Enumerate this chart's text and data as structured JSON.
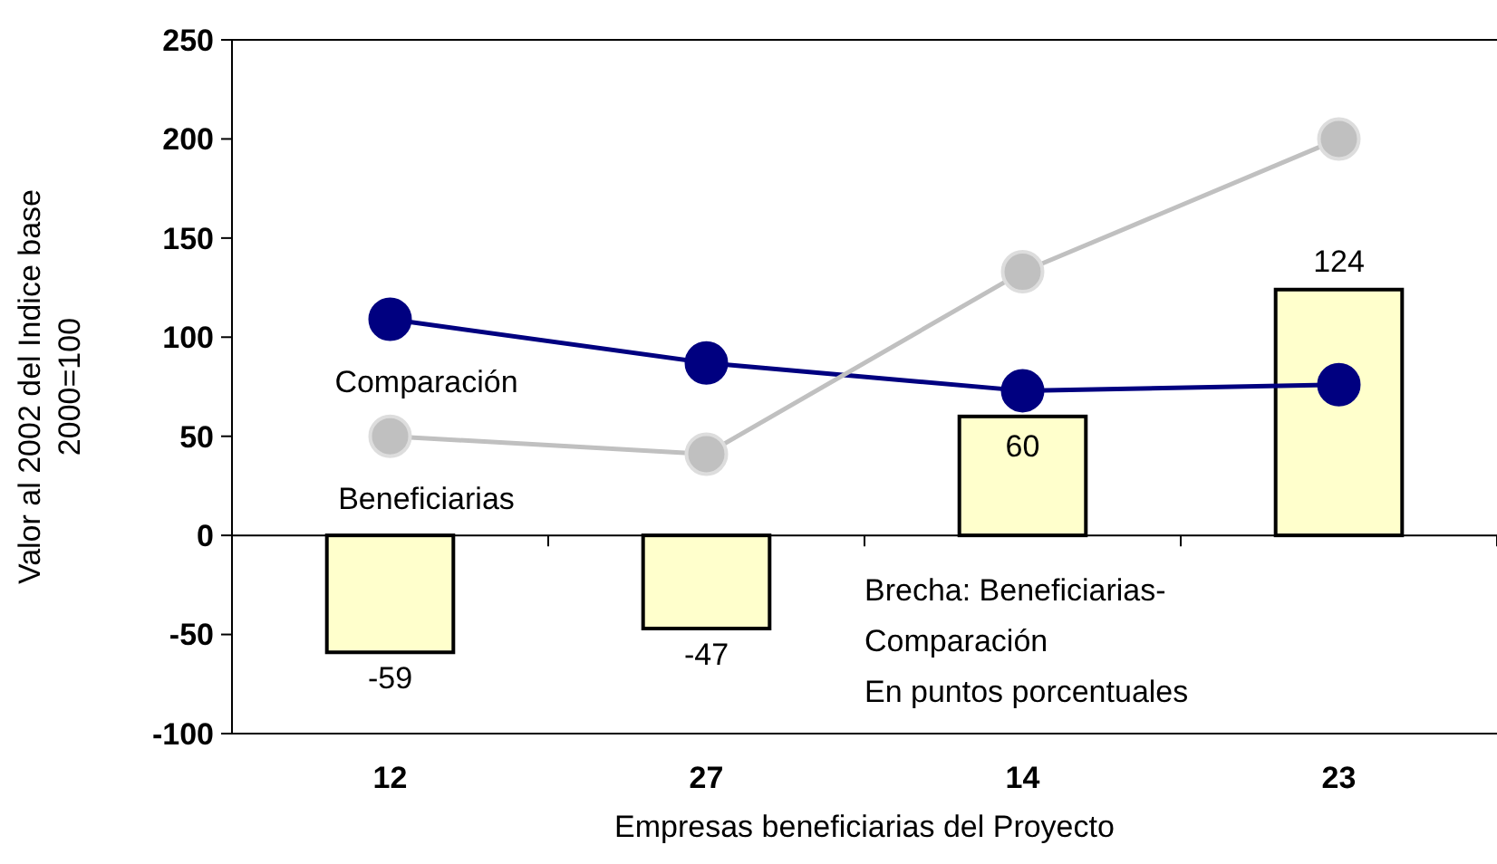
{
  "chart_data": {
    "type": "bar",
    "xlabel": "Empresas beneficiarias del Proyecto",
    "ylabel": "Valor al 2002 del Indice base 2000=100",
    "categories": [
      "12",
      "27",
      "14",
      "23"
    ],
    "series": [
      {
        "color": "#ffffcc",
        "values": [
          -59,
          -47,
          60,
          124
        ],
        "value_labels": [
          "-59",
          "-47",
          "60",
          "124"
        ]
      },
      {
        "type": "line",
        "name": "Comparación",
        "color": "#000080",
        "values": [
          109,
          87,
          73,
          76
        ]
      },
      {
        "type": "line",
        "name": "Beneficiarias",
        "color": "#c0c0c0",
        "values": [
          50,
          41,
          133,
          200
        ]
      }
    ],
    "marker": "circle",
    "ylim": [
      -100,
      250
    ],
    "yticks": [
      -100,
      -50,
      0,
      50,
      100,
      150,
      200,
      250
    ],
    "annotations": [
      "Brecha:  Beneficiarias-\nComparación\nEn puntos porcentuales"
    ]
  }
}
